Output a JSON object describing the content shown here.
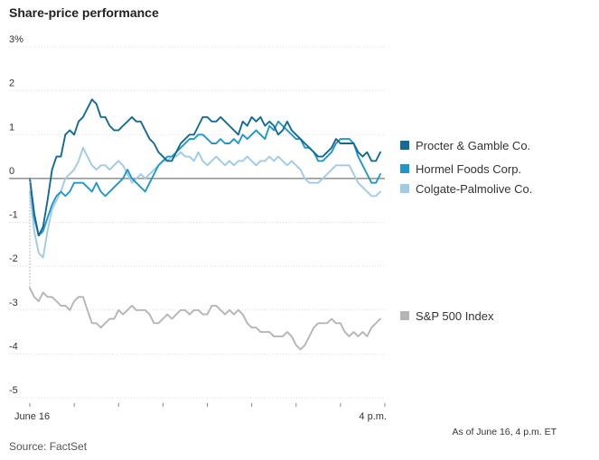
{
  "chart_data": {
    "type": "line",
    "title": "Share-price performance",
    "y_ticks": [
      {
        "value": 3,
        "label": "3%"
      },
      {
        "value": 2,
        "label": "2"
      },
      {
        "value": 1,
        "label": "1"
      },
      {
        "value": 0,
        "label": "0"
      },
      {
        "value": -1,
        "label": "-1"
      },
      {
        "value": -2,
        "label": "-2"
      },
      {
        "value": -3,
        "label": "-3"
      },
      {
        "value": -4,
        "label": "-4"
      },
      {
        "value": -5,
        "label": "-5"
      }
    ],
    "x_ticks": [
      {
        "label": "June 16"
      },
      {
        "label": "4 p.m."
      }
    ],
    "ylim": [
      -5,
      3
    ],
    "grid": true,
    "legend_position": "right",
    "note": "As of June 16, 4 p.m. ET",
    "source": "Source: FactSet",
    "series": [
      {
        "name": "Procter & Gamble Co.",
        "color": "#146a94",
        "legend_group": "top",
        "values": [
          0.0,
          -0.8,
          -1.3,
          -1.1,
          -0.5,
          0.2,
          0.5,
          0.5,
          1.0,
          1.1,
          1.0,
          1.3,
          1.4,
          1.6,
          1.8,
          1.7,
          1.4,
          1.4,
          1.2,
          1.1,
          1.1,
          1.2,
          1.3,
          1.4,
          1.3,
          1.3,
          1.1,
          0.9,
          0.8,
          0.6,
          0.5,
          0.4,
          0.4,
          0.6,
          0.8,
          0.9,
          1.0,
          1.0,
          1.2,
          1.4,
          1.4,
          1.3,
          1.3,
          1.4,
          1.3,
          1.2,
          1.1,
          1.0,
          1.3,
          1.2,
          1.4,
          1.3,
          1.4,
          1.2,
          1.3,
          1.2,
          1.0,
          1.1,
          1.3,
          1.1,
          1.0,
          0.9,
          0.8,
          0.7,
          0.6,
          0.5,
          0.5,
          0.6,
          0.7,
          0.9,
          0.8,
          0.8,
          0.8,
          0.8,
          0.6,
          0.5,
          0.6,
          0.4,
          0.4,
          0.6
        ]
      },
      {
        "name": "Hormel Foods Corp.",
        "color": "#1f97c9",
        "legend_group": "top",
        "values": [
          0.0,
          -0.9,
          -1.3,
          -1.2,
          -0.9,
          -0.6,
          -0.4,
          -0.3,
          -0.4,
          -0.3,
          -0.1,
          -0.1,
          -0.1,
          -0.2,
          -0.3,
          -0.1,
          -0.3,
          -0.4,
          -0.3,
          -0.2,
          -0.1,
          0.0,
          0.2,
          0.0,
          -0.1,
          -0.2,
          -0.3,
          -0.1,
          0.1,
          0.3,
          0.4,
          0.5,
          0.5,
          0.6,
          0.7,
          0.8,
          0.9,
          0.9,
          1.0,
          1.0,
          0.9,
          0.8,
          0.8,
          0.9,
          0.8,
          0.8,
          0.9,
          0.8,
          1.0,
          0.9,
          1.0,
          1.1,
          1.0,
          0.9,
          1.2,
          1.1,
          1.3,
          1.2,
          1.1,
          1.0,
          0.9,
          0.9,
          0.7,
          0.7,
          0.6,
          0.4,
          0.4,
          0.5,
          0.6,
          0.8,
          0.9,
          0.9,
          0.9,
          0.8,
          0.5,
          0.3,
          0.1,
          -0.1,
          -0.1,
          0.1
        ]
      },
      {
        "name": "Colgate-Palmolive Co.",
        "color": "#9fcbe6",
        "legend_group": "top",
        "values": [
          -0.3,
          -1.2,
          -1.7,
          -1.8,
          -1.2,
          -0.7,
          -0.5,
          -0.3,
          0.0,
          0.1,
          0.2,
          0.4,
          0.7,
          0.5,
          0.3,
          0.2,
          0.3,
          0.3,
          0.2,
          0.3,
          0.4,
          0.3,
          0.1,
          -0.1,
          0.0,
          0.1,
          0.0,
          0.1,
          0.2,
          0.3,
          0.4,
          0.4,
          0.5,
          0.5,
          0.6,
          0.5,
          0.5,
          0.4,
          0.6,
          0.4,
          0.3,
          0.4,
          0.5,
          0.4,
          0.3,
          0.4,
          0.3,
          0.4,
          0.4,
          0.5,
          0.4,
          0.3,
          0.4,
          0.4,
          0.5,
          0.4,
          0.5,
          0.4,
          0.3,
          0.4,
          0.3,
          0.2,
          0.0,
          -0.1,
          -0.1,
          -0.1,
          0.0,
          0.1,
          0.2,
          0.3,
          0.3,
          0.3,
          0.3,
          0.1,
          -0.1,
          -0.2,
          -0.3,
          -0.4,
          -0.4,
          -0.3
        ]
      },
      {
        "name": "S&P 500 Index",
        "color": "#b5b5b5",
        "legend_group": "bottom",
        "values": [
          -2.5,
          -2.7,
          -2.8,
          -2.6,
          -2.7,
          -2.7,
          -2.8,
          -2.9,
          -2.9,
          -3.0,
          -2.8,
          -2.7,
          -2.7,
          -3.0,
          -3.3,
          -3.3,
          -3.4,
          -3.3,
          -3.2,
          -3.2,
          -3.0,
          -3.1,
          -3.0,
          -2.9,
          -3.0,
          -3.0,
          -3.0,
          -3.1,
          -3.3,
          -3.3,
          -3.2,
          -3.1,
          -3.2,
          -3.1,
          -3.0,
          -3.0,
          -3.1,
          -3.0,
          -3.0,
          -3.1,
          -3.1,
          -2.9,
          -2.9,
          -3.0,
          -3.1,
          -3.0,
          -3.1,
          -3.0,
          -3.1,
          -3.3,
          -3.4,
          -3.4,
          -3.5,
          -3.5,
          -3.5,
          -3.6,
          -3.6,
          -3.6,
          -3.5,
          -3.6,
          -3.8,
          -3.9,
          -3.8,
          -3.6,
          -3.4,
          -3.3,
          -3.3,
          -3.3,
          -3.2,
          -3.3,
          -3.3,
          -3.5,
          -3.6,
          -3.5,
          -3.6,
          -3.5,
          -3.6,
          -3.4,
          -3.3,
          -3.2
        ]
      }
    ]
  }
}
